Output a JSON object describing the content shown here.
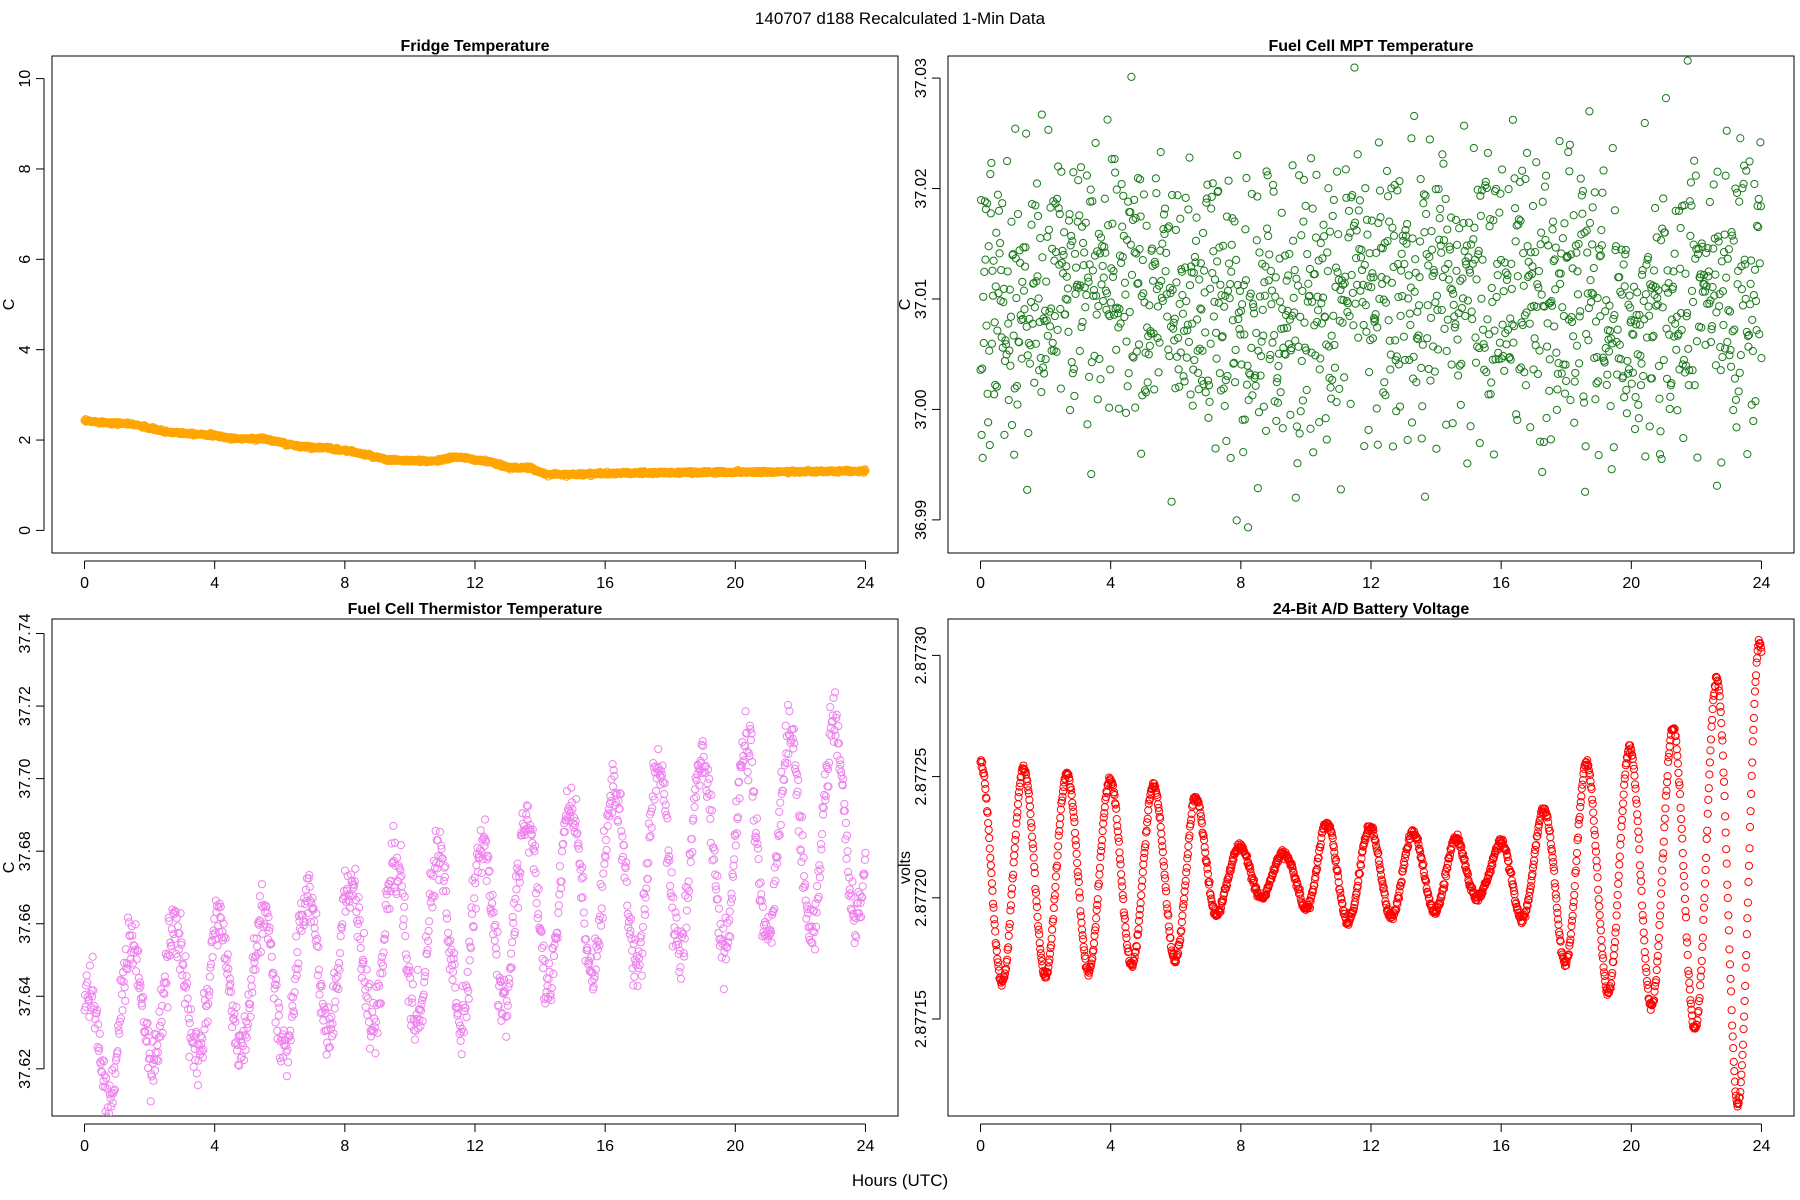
{
  "page": {
    "main_title": "140707   d188   Recalculated 1-Min Data",
    "x_axis_label": "Hours (UTC)"
  },
  "chart_data": [
    {
      "id": "fridge",
      "type": "scatter",
      "title": "Fridge Temperature",
      "xlabel": "",
      "ylabel": "C",
      "xlim": [
        -1,
        25
      ],
      "ylim": [
        -0.5,
        10.5
      ],
      "xticks": [
        0,
        4,
        8,
        12,
        16,
        20,
        24
      ],
      "yticks": [
        0,
        2,
        4,
        6,
        8,
        10
      ],
      "ytick_labels": [
        "0",
        "2",
        "4",
        "6",
        "8",
        "10"
      ],
      "color": "#FFA500",
      "series_points": 1440,
      "keypoints": [
        [
          0,
          2.42
        ],
        [
          1.5,
          2.35
        ],
        [
          2.5,
          2.18
        ],
        [
          3.8,
          2.12
        ],
        [
          4.6,
          2.03
        ],
        [
          5.5,
          2.03
        ],
        [
          6.5,
          1.87
        ],
        [
          7.5,
          1.82
        ],
        [
          8.2,
          1.75
        ],
        [
          9.3,
          1.56
        ],
        [
          10.5,
          1.53
        ],
        [
          11,
          1.56
        ],
        [
          11.4,
          1.63
        ],
        [
          12.4,
          1.52
        ],
        [
          13,
          1.4
        ],
        [
          13.7,
          1.38
        ],
        [
          14.2,
          1.24
        ],
        [
          15,
          1.24
        ],
        [
          16,
          1.26
        ],
        [
          18,
          1.28
        ],
        [
          20,
          1.29
        ],
        [
          24,
          1.31
        ]
      ],
      "noise": 0.015
    },
    {
      "id": "mpt",
      "type": "scatter",
      "title": "Fuel Cell MPT Temperature",
      "xlabel": "",
      "ylabel": "C",
      "xlim": [
        -1,
        25
      ],
      "ylim": [
        36.987,
        37.032
      ],
      "xticks": [
        0,
        4,
        8,
        12,
        16,
        20,
        24
      ],
      "yticks": [
        36.99,
        37.0,
        37.01,
        37.02,
        37.03
      ],
      "ytick_labels": [
        "36.99",
        "37.00",
        "37.01",
        "37.02",
        "37.03"
      ],
      "color": "#1A7A1A",
      "series_points": 1440,
      "keypoints": [
        [
          0,
          37.009
        ],
        [
          4,
          37.012
        ],
        [
          8,
          37.008
        ],
        [
          12,
          37.011
        ],
        [
          16,
          37.011
        ],
        [
          20,
          37.009
        ],
        [
          24,
          37.011
        ]
      ],
      "noise": 0.0065,
      "subsample": 1
    },
    {
      "id": "thermistor",
      "type": "scatter",
      "title": "Fuel Cell Thermistor Temperature",
      "xlabel": "",
      "ylabel": "C",
      "xlim": [
        -1,
        25
      ],
      "ylim": [
        37.607,
        37.744
      ],
      "xticks": [
        0,
        4,
        8,
        12,
        16,
        20,
        24
      ],
      "yticks": [
        37.62,
        37.64,
        37.66,
        37.68,
        37.7,
        37.72,
        37.74
      ],
      "ytick_labels": [
        "37.62",
        "37.64",
        "37.66",
        "37.68",
        "37.70",
        "37.72",
        "37.74"
      ],
      "color": "#EE82EE",
      "series_points": 1440,
      "keypoints": [
        [
          0,
          37.625
        ],
        [
          2,
          37.64
        ],
        [
          4,
          37.642
        ],
        [
          6,
          37.645
        ],
        [
          8,
          37.652
        ],
        [
          10,
          37.655
        ],
        [
          12,
          37.658
        ],
        [
          14,
          37.666
        ],
        [
          16,
          37.672
        ],
        [
          18,
          37.678
        ],
        [
          20,
          37.682
        ],
        [
          22,
          37.685
        ],
        [
          24,
          37.69
        ]
      ],
      "osc_period": 1.35,
      "osc_amp_start": 0.017,
      "osc_amp_end": 0.03,
      "noise": 0.004
    },
    {
      "id": "battery",
      "type": "scatter",
      "title": "24-Bit A/D Battery Voltage",
      "xlabel": "",
      "ylabel": "volts",
      "xlim": [
        -1,
        25
      ],
      "ylim": [
        2.87711,
        2.877315
      ],
      "xticks": [
        0,
        4,
        8,
        12,
        16,
        20,
        24
      ],
      "yticks": [
        2.87715,
        2.8772,
        2.87725,
        2.8773
      ],
      "ytick_labels": [
        "2.87715",
        "2.87720",
        "2.87725",
        "2.87730"
      ],
      "color": "#FF0000",
      "series_points": 1440,
      "center": 2.87721,
      "osc_period": 1.33,
      "amp_keypoints": [
        [
          0,
          4.6e-05
        ],
        [
          6.5,
          3.45e-05
        ],
        [
          7.5,
          1.2e-05
        ],
        [
          9.5,
          8e-06
        ],
        [
          10.5,
          2.1e-05
        ],
        [
          14.5,
          1.5e-05
        ],
        [
          15.5,
          8.5e-06
        ],
        [
          17,
          2.2e-05
        ],
        [
          18.5,
          4.55e-05
        ],
        [
          20.5,
          5.45e-05
        ],
        [
          22,
          6.5e-05
        ],
        [
          23.2,
          9.5e-05
        ],
        [
          24,
          9.5e-05
        ]
      ],
      "noise": 8e-07
    }
  ]
}
